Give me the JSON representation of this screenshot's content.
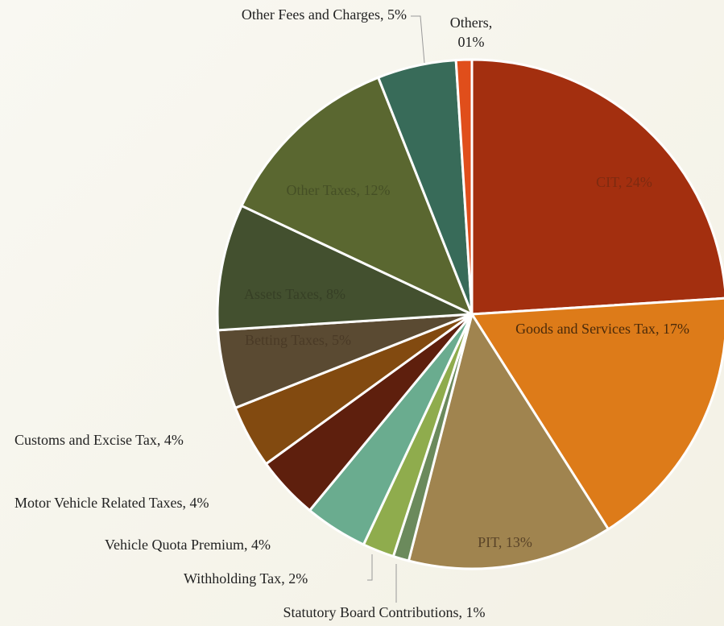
{
  "chart_data": {
    "type": "pie",
    "categories": [
      "CIT",
      "Goods and Services Tax",
      "PIT",
      "Statutory Board Contributions",
      "Withholding Tax",
      "Vehicle Quota Premium",
      "Motor Vehicle Related Taxes",
      "Customs and Excise Tax",
      "Betting Taxes",
      "Assets Taxes",
      "Other Taxes",
      "Other Fees and Charges",
      "Others"
    ],
    "values": [
      24,
      17,
      13,
      1,
      2,
      4,
      4,
      4,
      5,
      8,
      12,
      5,
      1
    ],
    "value_labels": [
      "24%",
      "17%",
      "13%",
      "1%",
      "2%",
      "4%",
      "4%",
      "4%",
      "5%",
      "8%",
      "12%",
      "5%",
      "01%"
    ],
    "colors": [
      "#a32f0f",
      "#dd7b19",
      "#a0844f",
      "#6b8a5c",
      "#8fac4d",
      "#6aac8f",
      "#5e1f0d",
      "#824a10",
      "#5a4a32",
      "#43502f",
      "#5a6730",
      "#386b59",
      "#e04e1b"
    ]
  }
}
